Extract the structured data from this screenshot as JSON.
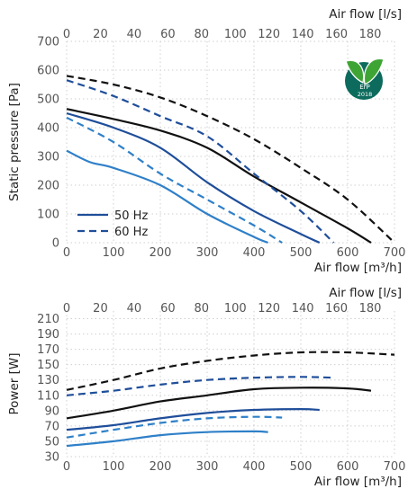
{
  "colors": {
    "black": "#111111",
    "navy": "#1f4e9a",
    "blue": "#2f80c8",
    "grid": "#cfcfcf",
    "badge_green": "#3ea535",
    "badge_teal": "#0c6b5c"
  },
  "badge": {
    "line1": "ErP",
    "line2": "2018",
    "icon": "erp-2018-leaf-badge"
  },
  "legend": {
    "solid_label": "50 Hz",
    "dashed_label": "60 Hz"
  },
  "chart_data": [
    {
      "type": "line",
      "id": "pressure",
      "xlabel": "Air flow [m³/h]",
      "x2label": "Air flow [l/s]",
      "ylabel": "Static pressure [Pa]",
      "xlim": [
        0,
        700
      ],
      "x2lim": [
        0,
        194.4
      ],
      "ylim": [
        0,
        700
      ],
      "x_ticks": [
        "0",
        "100",
        "200",
        "300",
        "400",
        "500",
        "600",
        "700"
      ],
      "x2_ticks": [
        "0",
        "20",
        "40",
        "60",
        "80",
        "100",
        "120",
        "140",
        "160",
        "180"
      ],
      "y_ticks": [
        "0",
        "100",
        "200",
        "300",
        "400",
        "500",
        "600",
        "700"
      ],
      "grid": true,
      "legend_position": "bottom-left",
      "series": [
        {
          "color": "black",
          "dash": true,
          "x": [
            0,
            100,
            200,
            300,
            400,
            500,
            600,
            700
          ],
          "y": [
            580,
            550,
            505,
            440,
            360,
            260,
            150,
            0
          ]
        },
        {
          "color": "black",
          "dash": false,
          "x": [
            0,
            100,
            200,
            300,
            400,
            500,
            600,
            650
          ],
          "y": [
            465,
            430,
            390,
            330,
            230,
            140,
            50,
            0
          ]
        },
        {
          "color": "navy",
          "dash": true,
          "x": [
            0,
            100,
            200,
            300,
            400,
            500,
            570
          ],
          "y": [
            565,
            510,
            440,
            370,
            240,
            110,
            0
          ]
        },
        {
          "color": "navy",
          "dash": false,
          "x": [
            0,
            100,
            200,
            300,
            400,
            500,
            540
          ],
          "y": [
            450,
            400,
            330,
            210,
            110,
            30,
            0
          ]
        },
        {
          "color": "blue",
          "dash": true,
          "x": [
            0,
            100,
            200,
            300,
            400,
            460
          ],
          "y": [
            435,
            350,
            240,
            150,
            60,
            0
          ]
        },
        {
          "color": "blue",
          "dash": false,
          "x": [
            0,
            50,
            100,
            200,
            300,
            400,
            430
          ],
          "y": [
            320,
            280,
            260,
            200,
            100,
            20,
            0
          ]
        }
      ]
    },
    {
      "type": "line",
      "id": "power",
      "xlabel": "Air flow [m³/h]",
      "x2label": "Air flow [l/s]",
      "ylabel": "Power [W]",
      "xlim": [
        0,
        700
      ],
      "x2lim": [
        0,
        194.4
      ],
      "ylim": [
        30,
        220
      ],
      "x_ticks": [
        "0",
        "100",
        "200",
        "300",
        "400",
        "500",
        "600",
        "700"
      ],
      "x2_ticks": [
        "0",
        "20",
        "40",
        "60",
        "80",
        "100",
        "120",
        "140",
        "160",
        "180"
      ],
      "y_ticks": [
        "30",
        "50",
        "70",
        "90",
        "110",
        "130",
        "150",
        "170",
        "190",
        "210"
      ],
      "grid": true,
      "series": [
        {
          "color": "black",
          "dash": true,
          "x": [
            0,
            100,
            200,
            300,
            400,
            500,
            600,
            700
          ],
          "y": [
            117,
            130,
            145,
            155,
            162,
            166,
            166,
            163
          ]
        },
        {
          "color": "black",
          "dash": false,
          "x": [
            0,
            100,
            200,
            300,
            400,
            500,
            600,
            650
          ],
          "y": [
            80,
            90,
            102,
            110,
            118,
            120,
            119,
            116
          ]
        },
        {
          "color": "navy",
          "dash": true,
          "x": [
            0,
            100,
            200,
            300,
            400,
            500,
            570
          ],
          "y": [
            110,
            116,
            124,
            130,
            133,
            134,
            133
          ]
        },
        {
          "color": "navy",
          "dash": false,
          "x": [
            0,
            100,
            200,
            300,
            400,
            500,
            540
          ],
          "y": [
            65,
            71,
            80,
            87,
            91,
            92,
            91
          ]
        },
        {
          "color": "blue",
          "dash": true,
          "x": [
            0,
            100,
            200,
            300,
            400,
            460
          ],
          "y": [
            55,
            65,
            74,
            80,
            82,
            81
          ]
        },
        {
          "color": "blue",
          "dash": false,
          "x": [
            0,
            100,
            200,
            300,
            400,
            430
          ],
          "y": [
            44,
            50,
            58,
            62,
            63,
            62
          ]
        }
      ]
    }
  ]
}
